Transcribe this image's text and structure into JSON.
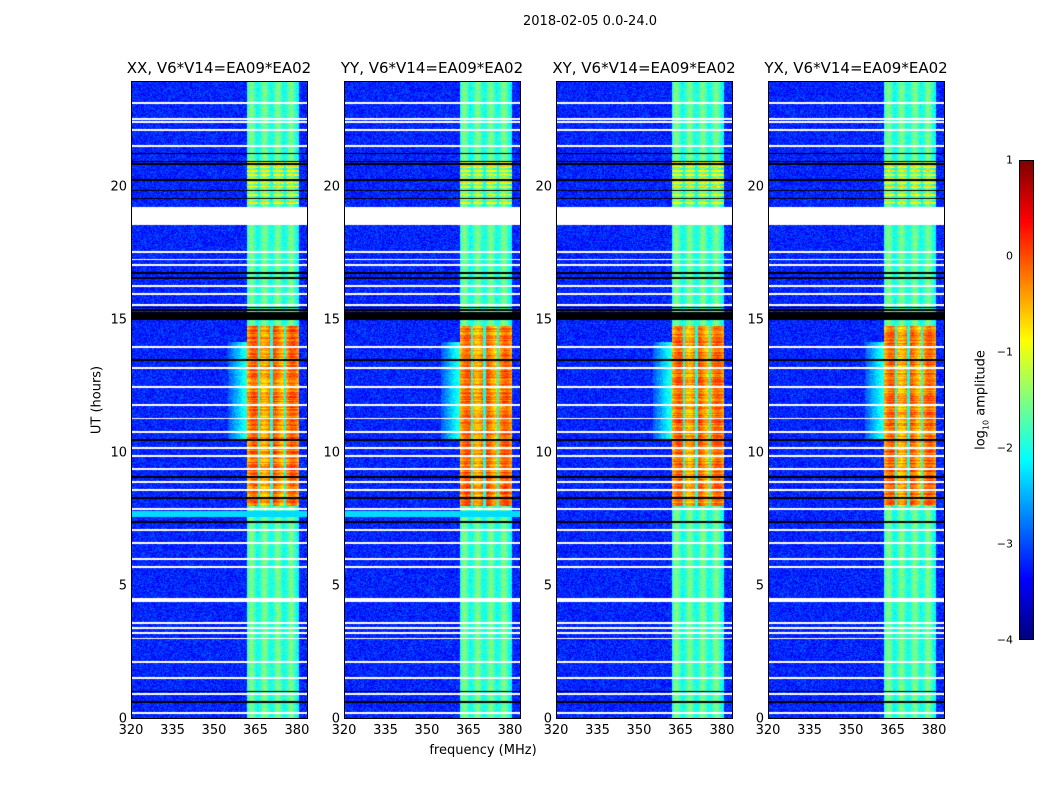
{
  "chart_data": {
    "type": "heatmap",
    "title": "2018-02-05 0.0-24.0",
    "xlabel": "frequency (MHz)",
    "ylabel": "UT (hours)",
    "xlim": [
      320,
      384
    ],
    "ylim": [
      0,
      24
    ],
    "xticks": [
      320,
      335,
      350,
      365,
      380
    ],
    "yticks": [
      0,
      5,
      10,
      15,
      20
    ],
    "panels": [
      {
        "title": "XX, V6*V14=EA09*EA02",
        "cyan_flag": true
      },
      {
        "title": "YY, V6*V14=EA09*EA02",
        "cyan_flag": true
      },
      {
        "title": "XY, V6*V14=EA09*EA02",
        "cyan_flag": false
      },
      {
        "title": "YX, V6*V14=EA09*EA02",
        "cyan_flag": false
      }
    ],
    "features": {
      "background_log10": -3.2,
      "rfi_band_mhz": [
        362,
        381
      ],
      "rfi_band_quiet_log10": -1.8,
      "rfi_band_active_log10": -0.3,
      "active_hours": [
        8.0,
        14.8
      ],
      "upper_active_hours": [
        19.4,
        21.0
      ],
      "gap_hours": [
        18.6,
        19.3
      ],
      "flagged_black_hours": [
        15.0,
        15.5
      ]
    },
    "colorbar": {
      "label_prefix": "log",
      "label_sub": "10",
      "label_suffix": " amplitude",
      "range": [
        -4,
        1
      ],
      "ticks": [
        "1",
        "0",
        "−1",
        "−2",
        "−3",
        "−4"
      ],
      "tick_values": [
        1,
        0,
        -1,
        -2,
        -3,
        -4
      ],
      "colormap": "jet"
    }
  }
}
